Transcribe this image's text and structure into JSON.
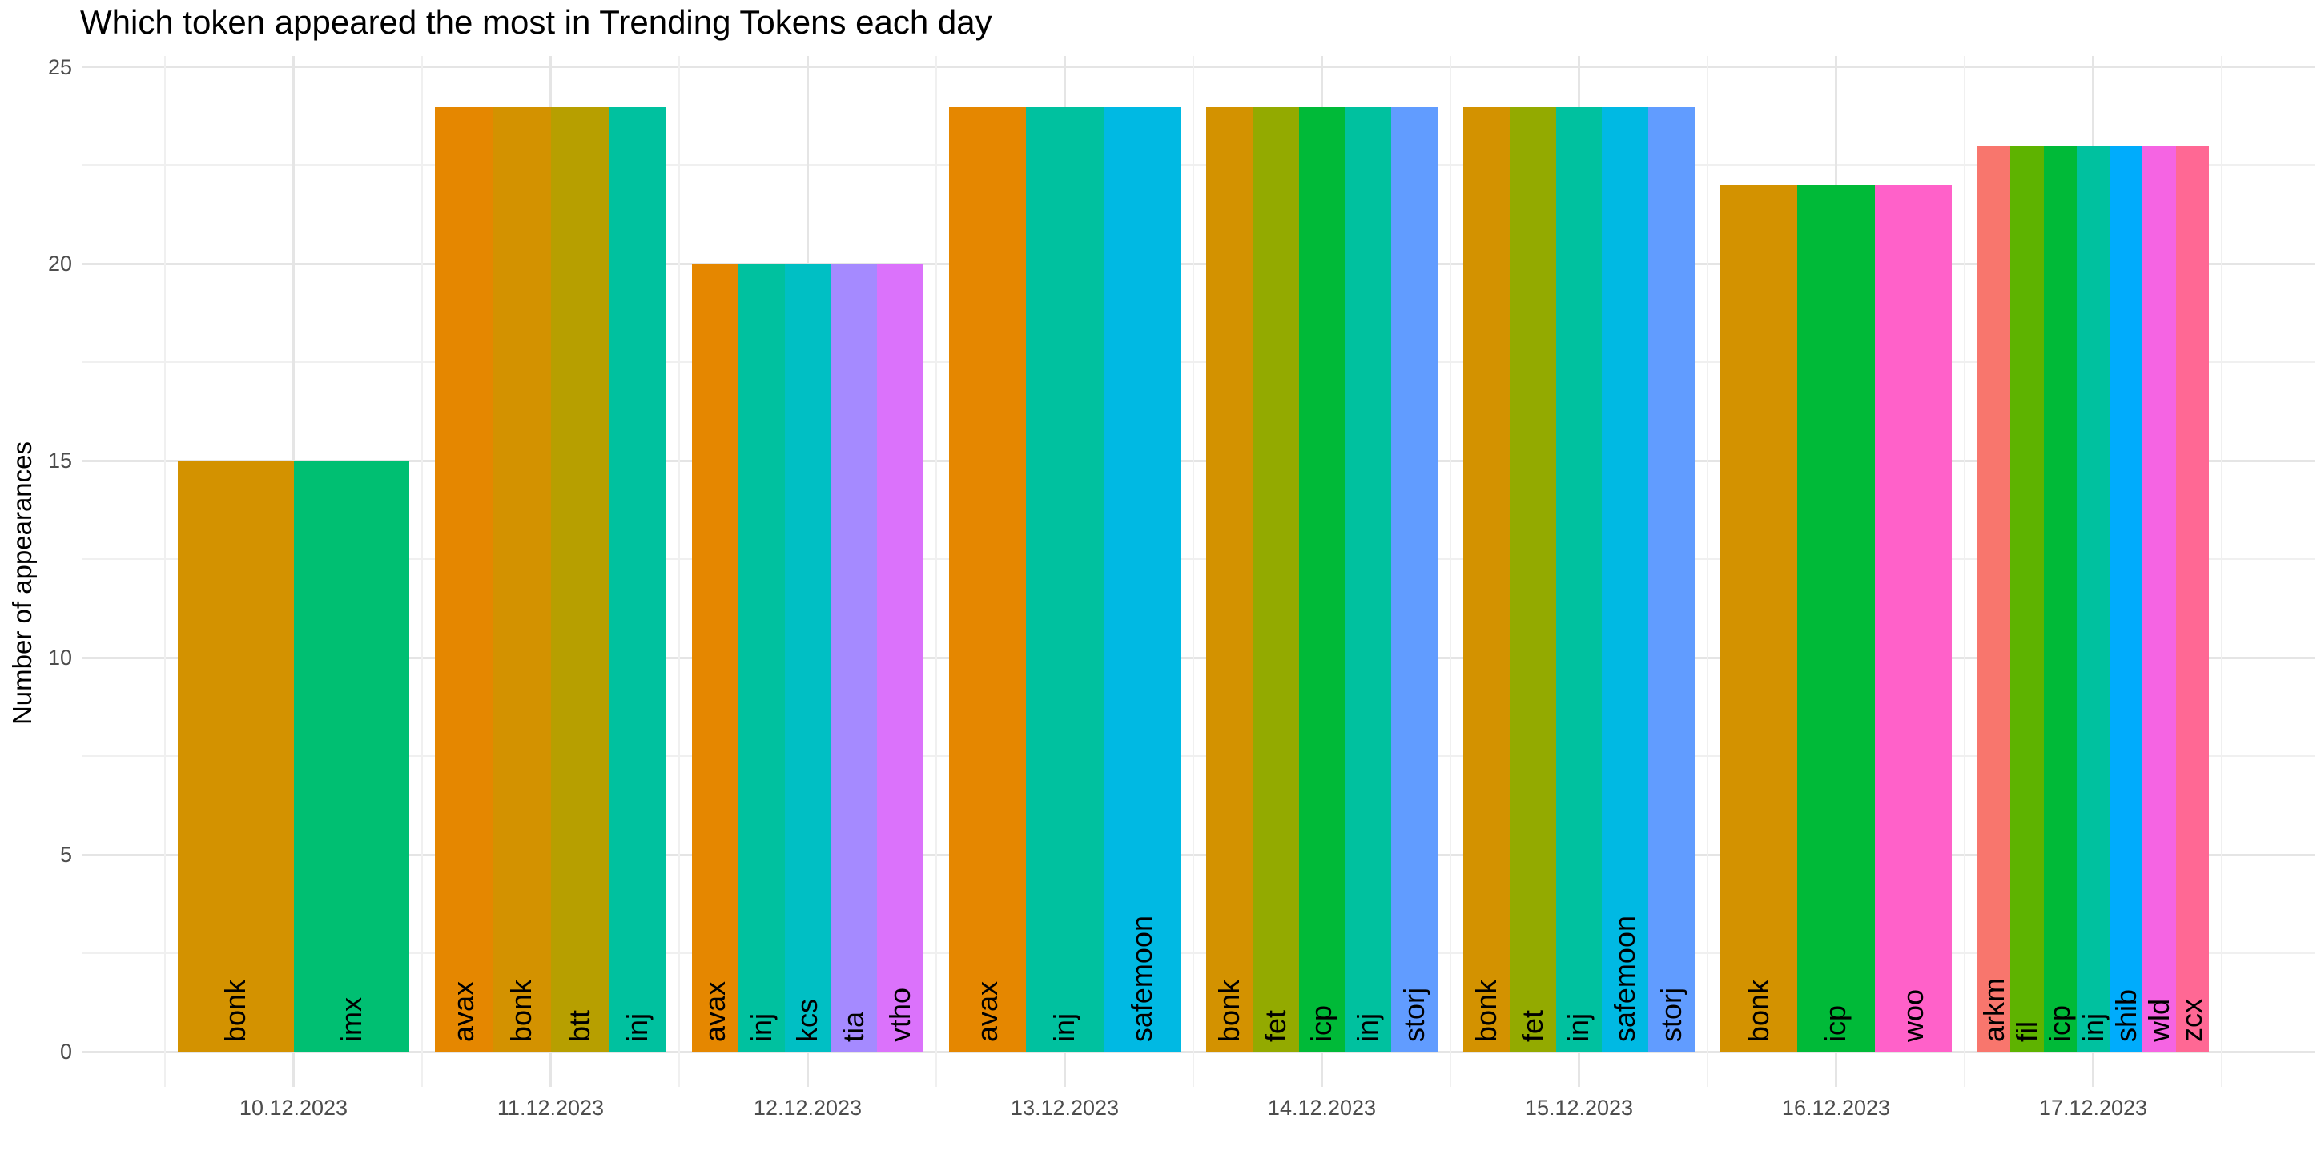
{
  "chart_data": {
    "type": "bar",
    "title": "Which token appeared the most in Trending Tokens each day",
    "ylabel": "Number of appearances",
    "xlabel": "",
    "ylim": [
      0,
      25
    ],
    "yticks": [
      0,
      5,
      10,
      15,
      20,
      25
    ],
    "yticks_minor": [
      2.5,
      7.5,
      12.5,
      17.5,
      22.5
    ],
    "grid": "major and minor, light gray on white background",
    "legend_position": "none",
    "bar_label_style": "token name rotated 90deg at bar base",
    "categories": [
      "10.12.2023",
      "11.12.2023",
      "12.12.2023",
      "13.12.2023",
      "14.12.2023",
      "15.12.2023",
      "16.12.2023",
      "17.12.2023"
    ],
    "groups": [
      {
        "date": "10.12.2023",
        "bars": [
          {
            "token": "bonk",
            "value": 15
          },
          {
            "token": "imx",
            "value": 15
          }
        ]
      },
      {
        "date": "11.12.2023",
        "bars": [
          {
            "token": "avax",
            "value": 24
          },
          {
            "token": "bonk",
            "value": 24
          },
          {
            "token": "btt",
            "value": 24
          },
          {
            "token": "inj",
            "value": 24
          }
        ]
      },
      {
        "date": "12.12.2023",
        "bars": [
          {
            "token": "avax",
            "value": 20
          },
          {
            "token": "inj",
            "value": 20
          },
          {
            "token": "kcs",
            "value": 20
          },
          {
            "token": "tia",
            "value": 20
          },
          {
            "token": "vtho",
            "value": 20
          }
        ]
      },
      {
        "date": "13.12.2023",
        "bars": [
          {
            "token": "avax",
            "value": 24
          },
          {
            "token": "inj",
            "value": 24
          },
          {
            "token": "safemoon",
            "value": 24
          }
        ]
      },
      {
        "date": "14.12.2023",
        "bars": [
          {
            "token": "bonk",
            "value": 24
          },
          {
            "token": "fet",
            "value": 24
          },
          {
            "token": "icp",
            "value": 24
          },
          {
            "token": "inj",
            "value": 24
          },
          {
            "token": "storj",
            "value": 24
          }
        ]
      },
      {
        "date": "15.12.2023",
        "bars": [
          {
            "token": "bonk",
            "value": 24
          },
          {
            "token": "fet",
            "value": 24
          },
          {
            "token": "inj",
            "value": 24
          },
          {
            "token": "safemoon",
            "value": 24
          },
          {
            "token": "storj",
            "value": 24
          }
        ]
      },
      {
        "date": "16.12.2023",
        "bars": [
          {
            "token": "bonk",
            "value": 22
          },
          {
            "token": "icp",
            "value": 22
          },
          {
            "token": "woo",
            "value": 22
          }
        ]
      },
      {
        "date": "17.12.2023",
        "bars": [
          {
            "token": "arkm",
            "value": 23
          },
          {
            "token": "fil",
            "value": 23
          },
          {
            "token": "icp",
            "value": 23
          },
          {
            "token": "inj",
            "value": 23
          },
          {
            "token": "shib",
            "value": 23
          },
          {
            "token": "wld",
            "value": 23
          },
          {
            "token": "zcx",
            "value": 23
          }
        ]
      }
    ],
    "token_colors": {
      "arkm": "#F8766D",
      "avax": "#E58700",
      "bonk": "#D39200",
      "btt": "#B79F00",
      "fet": "#93AA00",
      "fil": "#5EB300",
      "icp": "#00BA38",
      "imx": "#00BF72",
      "inj": "#00C19F",
      "kcs": "#00BFC4",
      "safemoon": "#00B9E3",
      "shib": "#00ACFC",
      "storj": "#619CFF",
      "tia": "#A58AFF",
      "vtho": "#DB72FB",
      "wld": "#F564E3",
      "woo": "#FF61C9",
      "zcx": "#FF6894"
    }
  }
}
